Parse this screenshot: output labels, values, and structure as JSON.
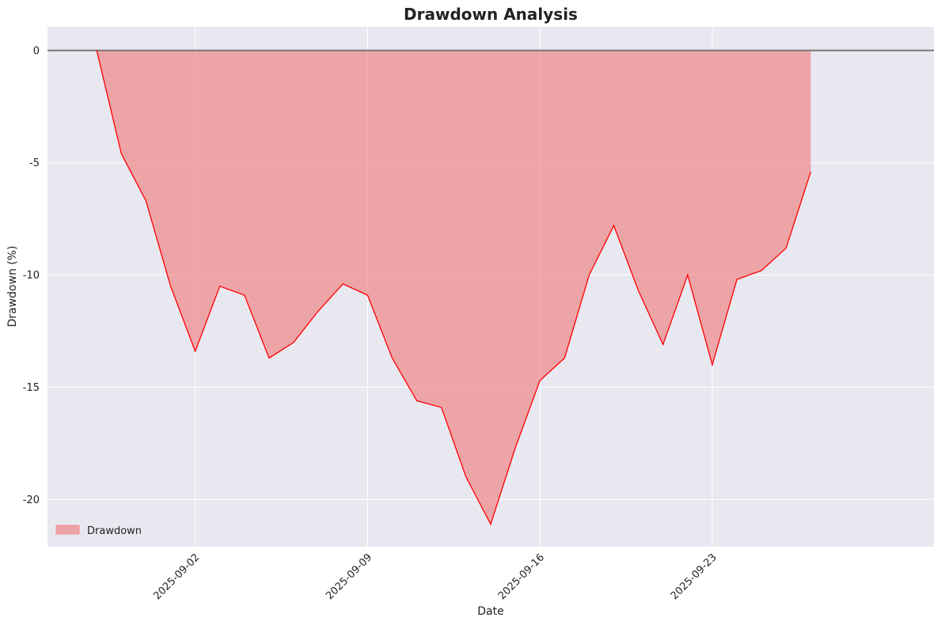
{
  "chart_data": {
    "type": "area",
    "title": "Drawdown Analysis",
    "xlabel": "Date",
    "ylabel": "Drawdown (%)",
    "x_axis_type": "date",
    "xlim": [
      "2025-08-27",
      "2025-10-02"
    ],
    "ylim": [
      -22.1,
      1.05
    ],
    "x_ticks": [
      "2025-09-02",
      "2025-09-09",
      "2025-09-16",
      "2025-09-23"
    ],
    "y_ticks": [
      0,
      -5,
      -10,
      -15,
      -20
    ],
    "y_tick_labels": [
      "0",
      "-5",
      "-10",
      "-15",
      "-20"
    ],
    "reference_line": {
      "y": 0,
      "color": "#777777"
    },
    "grid": true,
    "legend": {
      "position": "bottom-left",
      "entries": [
        "Drawdown"
      ]
    },
    "series": [
      {
        "name": "Drawdown",
        "color": "#ff0000",
        "fill_color": "#f08080",
        "x": [
          "2025-08-29",
          "2025-08-30",
          "2025-08-31",
          "2025-09-01",
          "2025-09-02",
          "2025-09-03",
          "2025-09-04",
          "2025-09-05",
          "2025-09-06",
          "2025-09-07",
          "2025-09-08",
          "2025-09-09",
          "2025-09-10",
          "2025-09-11",
          "2025-09-12",
          "2025-09-13",
          "2025-09-14",
          "2025-09-15",
          "2025-09-16",
          "2025-09-17",
          "2025-09-18",
          "2025-09-19",
          "2025-09-20",
          "2025-09-21",
          "2025-09-22",
          "2025-09-23",
          "2025-09-24",
          "2025-09-25",
          "2025-09-26",
          "2025-09-27",
          "2025-09-28"
        ],
        "values": [
          0.0,
          -4.6,
          -6.7,
          -10.5,
          -13.4,
          -10.5,
          -10.9,
          -13.7,
          -13.0,
          -11.6,
          -10.4,
          -10.9,
          -13.7,
          -15.6,
          -15.9,
          -19.0,
          -21.1,
          -17.7,
          -14.7,
          -13.7,
          -10.0,
          -7.8,
          -10.7,
          -13.1,
          -10.0,
          -14.0,
          -10.2,
          -9.8,
          -8.8,
          -5.4,
          null
        ]
      }
    ]
  },
  "colors": {
    "plot_background": "#e8e8f1",
    "grid": "#ffffff",
    "line": "#ff0000",
    "fill": "#f08080",
    "zero_line": "#777777"
  }
}
